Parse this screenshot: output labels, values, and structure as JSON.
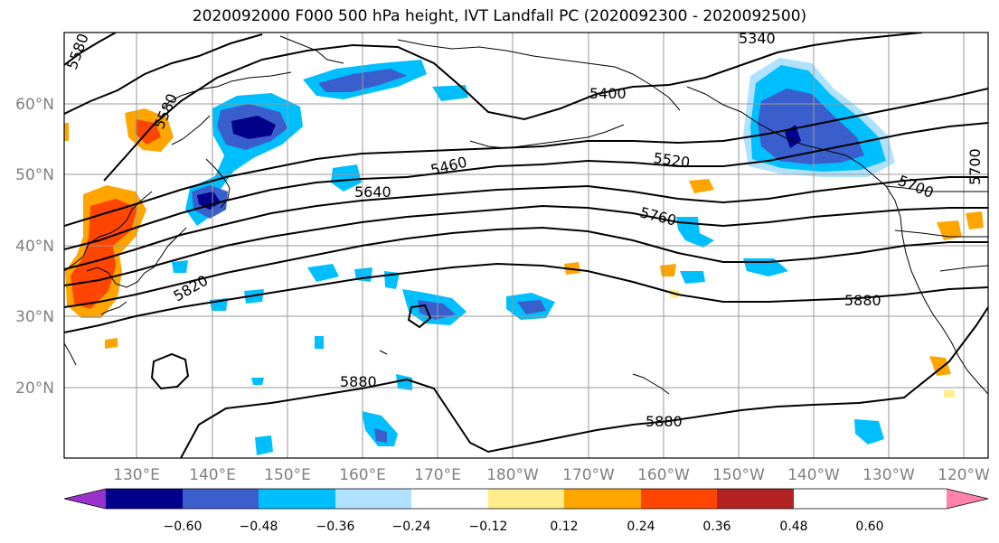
{
  "title": "2020092000 F000 500 hPa height, IVT Landfall PC (2020092300 - 2020092500)",
  "latitude_labels": [
    "60°N",
    "50°N",
    "40°N",
    "30°N",
    "20°N"
  ],
  "longitude_labels": [
    "130°E",
    "140°E",
    "150°E",
    "160°E",
    "170°E",
    "180°W",
    "170°W",
    "160°W",
    "150°W",
    "140°W",
    "130°W",
    "120°W"
  ],
  "contour_labels": [
    "5340",
    "5400",
    "5460",
    "5520",
    "5580",
    "5580",
    "5640",
    "5700",
    "5700",
    "5760",
    "5820",
    "5880",
    "5880",
    "5880"
  ],
  "colorbar": {
    "ticks": [
      "−0.60",
      "−0.48",
      "−0.36",
      "−0.24",
      "−0.12",
      "0.12",
      "0.24",
      "0.36",
      "0.48",
      "0.60"
    ],
    "colors": [
      "#9932cc",
      "#00008b",
      "#3a5fcd",
      "#00bfff",
      "#b0e2ff",
      "#ffffff",
      "#ffec8b",
      "#ffa500",
      "#ff4500",
      "#b22222",
      "#ff82ab"
    ]
  }
}
